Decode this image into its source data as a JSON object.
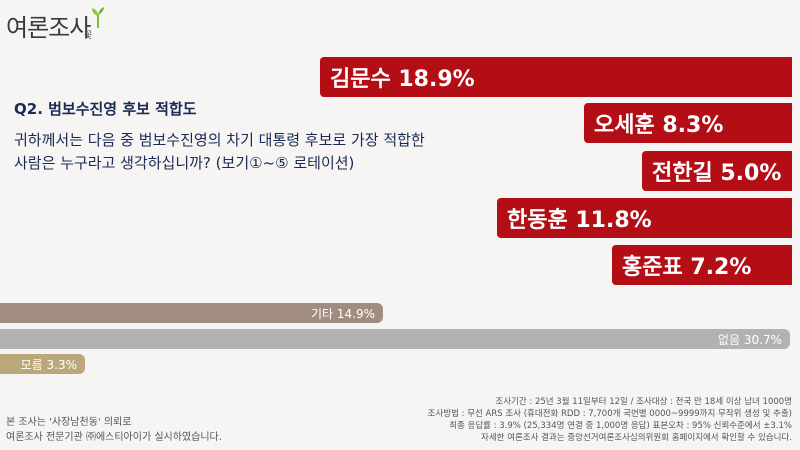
{
  "logo": {
    "text": "여론조사",
    "sub": "꽃"
  },
  "question": {
    "title": "Q2. 범보수진영 후보 적합도",
    "line1": "귀하께서는 다음 중 범보수진영의 차기 대통령 후보로 가장 적합한",
    "line2": "사람은 누구라고 생각하십니까? (보기①~⑤ 로테이션)"
  },
  "colors": {
    "candidate": "#b30d16",
    "other": "#a08d80",
    "undecided": "#b2b2b2",
    "dontknow": "#bba87a"
  },
  "chart_data": {
    "type": "bar",
    "title": "Q2. 범보수진영 후보 적합도",
    "unit": "%",
    "categories": [
      "김문수",
      "오세훈",
      "전한길",
      "한동훈",
      "홍준표"
    ],
    "values": [
      18.9,
      8.3,
      5.0,
      11.8,
      7.2
    ],
    "labels": [
      "김문수 18.9%",
      "오세훈 8.3%",
      "전한길 5.0%",
      "한동훈 11.8%",
      "홍준표 7.2%"
    ],
    "others": [
      {
        "label": "기타 14.9%",
        "value": 14.9,
        "color": "#a08d80"
      },
      {
        "label": "없음 30.7%",
        "value": 30.7,
        "color": "#b2b2b2"
      },
      {
        "label": "모름 3.3%",
        "value": 3.3,
        "color": "#bba87a"
      }
    ]
  },
  "footer": {
    "left_line1": "본 조사는 '사장남천동' 의뢰로",
    "left_line2": "여론조사 전문기관 ㈜에스티아이가 실시하였습니다.",
    "right_line1": "조사기간 : 25년 3월 11일부터 12일 / 조사대상 : 전국 만 18세 이상 남녀 1000명",
    "right_line2": "조사방법 : 무선 ARS 조사 (휴대전화 RDD : 7,700개 국번별 0000~9999까지 무작위 생성 및 추출)",
    "right_line3": "최종 응답률 : 3.9% (25,334명 연결 중 1,000명 응답) 표본오차 : 95% 신뢰수준에서 ±3.1%",
    "right_line4": "자세한 여론조사 결과는 중앙선거여론조사심의위원회 홈페이지에서 확인할 수 있습니다."
  }
}
